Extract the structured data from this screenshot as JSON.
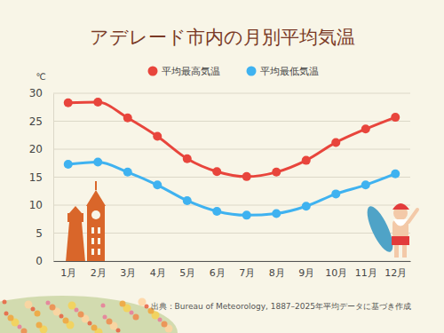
{
  "chart_data": {
    "type": "line",
    "title": "アデレード市内の月別平均気温",
    "y_label": "℃",
    "source": "出典：Bureau of Meteorology, 1887–2025年平均データに基づき作成",
    "categories": [
      "1月",
      "2月",
      "3月",
      "4月",
      "5月",
      "6月",
      "7月",
      "8月",
      "9月",
      "10月",
      "11月",
      "12月"
    ],
    "series": [
      {
        "name": "平均最高気温",
        "color": "#e8453c",
        "marker": "circle",
        "values": [
          28.3,
          28.4,
          25.6,
          22.3,
          18.3,
          16.0,
          15.1,
          15.9,
          18.0,
          21.2,
          23.6,
          25.7
        ]
      },
      {
        "name": "平均最低気温",
        "color": "#3fb2f0",
        "marker": "circle",
        "values": [
          17.3,
          17.7,
          15.9,
          13.6,
          10.8,
          8.9,
          8.2,
          8.5,
          9.8,
          12.0,
          13.6,
          15.6
        ]
      }
    ],
    "ylim": [
      0,
      30
    ],
    "yticks": [
      0,
      5,
      10,
      15,
      20,
      25,
      30
    ],
    "grid": true,
    "legend": "top"
  }
}
